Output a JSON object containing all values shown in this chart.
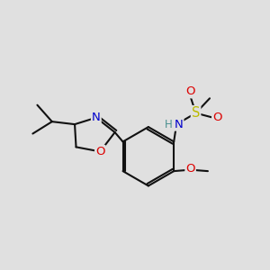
{
  "bg_color": "#e0e0e0",
  "bond_color": "#111111",
  "bond_width": 1.5,
  "atom_colors": {
    "O": "#dd0000",
    "N": "#0000cc",
    "S": "#bbbb00",
    "H": "#4a9090",
    "C": "#111111"
  },
  "font_size": 8.5
}
